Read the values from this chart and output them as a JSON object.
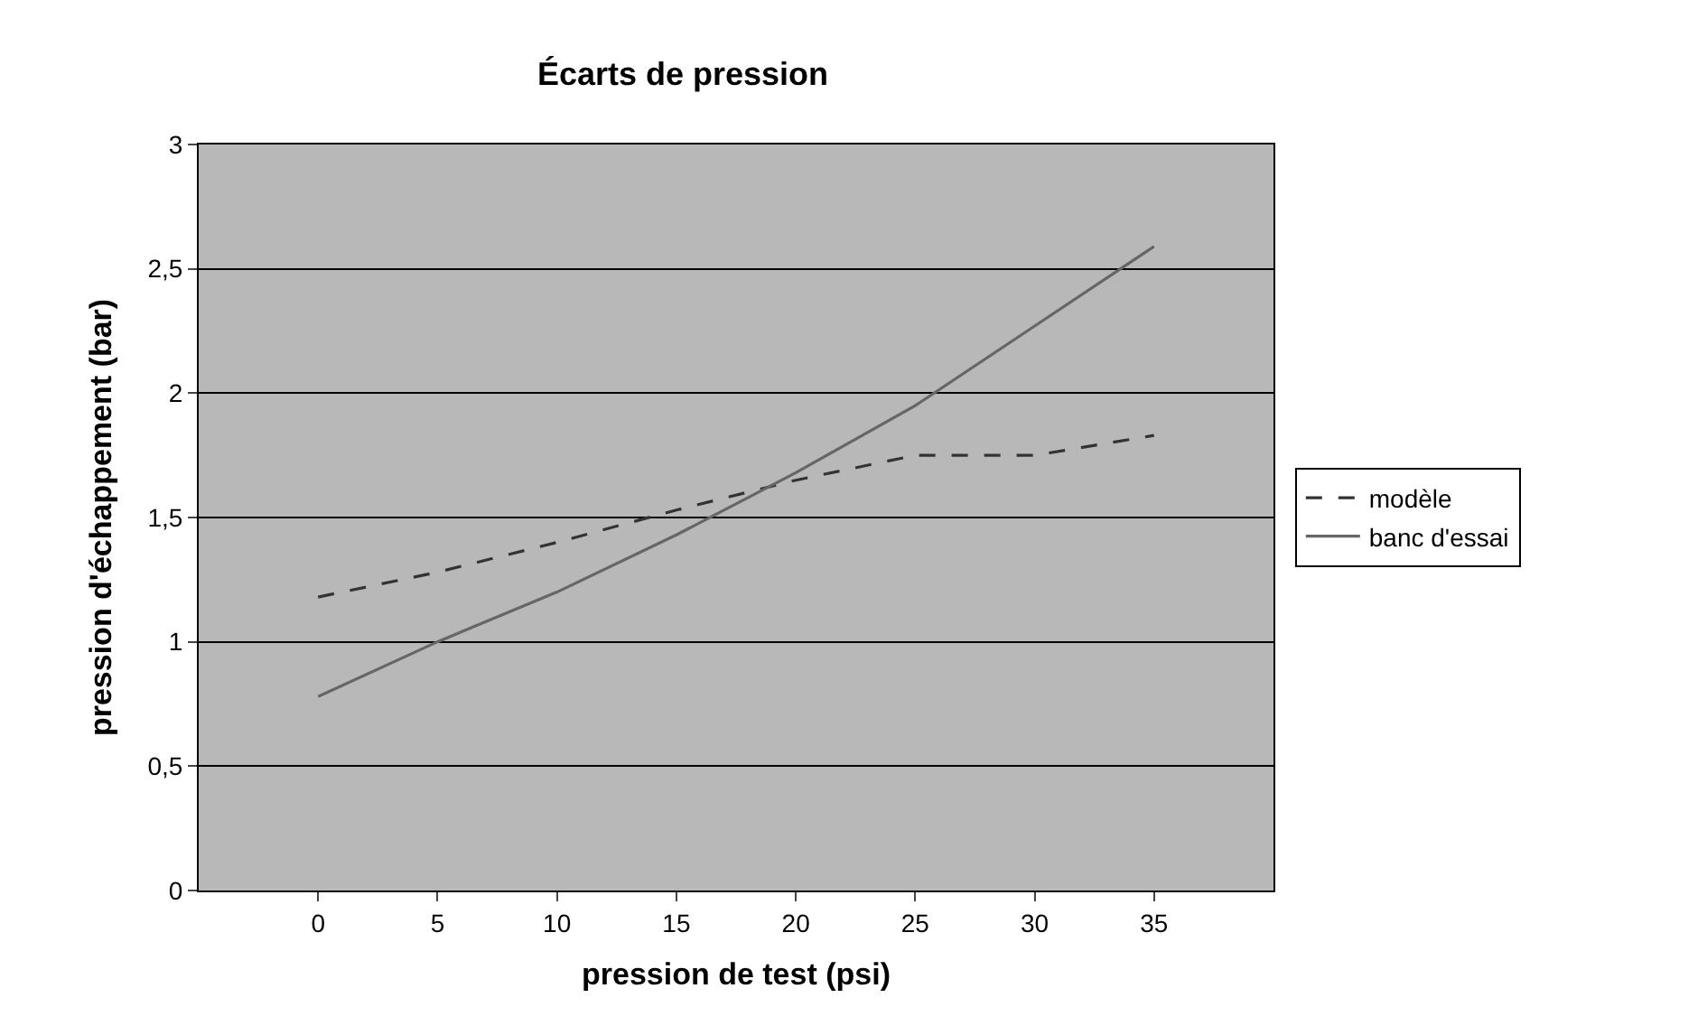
{
  "chart_data": {
    "type": "line",
    "title": "Écarts de pression",
    "xlabel": "pression de test (psi)",
    "ylabel": "pression d'échappement (bar)",
    "x": [
      0,
      5,
      10,
      15,
      20,
      25,
      30,
      35
    ],
    "series": [
      {
        "name": "modèle",
        "color": "#333333",
        "line_style": "dashed",
        "values": [
          1.18,
          1.28,
          1.4,
          1.53,
          1.65,
          1.75,
          1.75,
          1.83
        ]
      },
      {
        "name": "banc d'essai",
        "color": "#666666",
        "line_style": "solid",
        "values": [
          0.78,
          1.0,
          1.2,
          1.43,
          1.68,
          1.95,
          2.27,
          2.59
        ]
      }
    ],
    "xlim": [
      -5,
      40
    ],
    "xticks": [
      0,
      5,
      10,
      15,
      20,
      25,
      30,
      35
    ],
    "ylim": [
      0,
      3
    ],
    "yticks": [
      0,
      {
        "value": 0.5,
        "label": "0,5"
      },
      1,
      {
        "value": 1.5,
        "label": "1,5"
      },
      2,
      {
        "value": 2.5,
        "label": "2,5"
      },
      3
    ],
    "grid": "y",
    "legend": "right",
    "marker": "none"
  }
}
